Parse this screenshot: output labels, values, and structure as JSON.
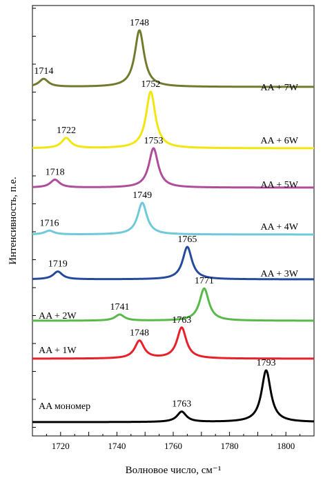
{
  "chart_data": {
    "type": "line",
    "title": "",
    "xlabel": "Волновое число, см⁻¹",
    "ylabel": "Интенсивность, п.е.",
    "xlim": [
      1710,
      1810
    ],
    "xticks": [
      1720,
      1740,
      1760,
      1780,
      1800
    ],
    "grid": false,
    "series": [
      {
        "name": "AA мономер",
        "color": "#000000",
        "peaks": [
          {
            "x": 1763,
            "label": "1763",
            "amp": 0.2
          },
          {
            "x": 1793,
            "label": "1793",
            "amp": 1.0
          }
        ]
      },
      {
        "name": "AA + 1W",
        "color": "#e8202a",
        "peaks": [
          {
            "x": 1748,
            "label": "1748",
            "amp": 0.4
          },
          {
            "x": 1763,
            "label": "1763",
            "amp": 0.7
          }
        ]
      },
      {
        "name": "AA + 2W",
        "color": "#58b848",
        "peaks": [
          {
            "x": 1741,
            "label": "1741",
            "amp": 0.17
          },
          {
            "x": 1771,
            "label": "1771",
            "amp": 0.9
          }
        ]
      },
      {
        "name": "AA + 3W",
        "color": "#254a9c",
        "peaks": [
          {
            "x": 1719,
            "label": "1719",
            "amp": 0.24
          },
          {
            "x": 1765,
            "label": "1765",
            "amp": 1.0
          }
        ]
      },
      {
        "name": "AA + 4W",
        "color": "#6ec9d8",
        "peaks": [
          {
            "x": 1716,
            "label": "1716",
            "amp": 0.12
          },
          {
            "x": 1749,
            "label": "1749",
            "amp": 1.0
          }
        ]
      },
      {
        "name": "AA + 5W",
        "color": "#b04c9c",
        "peaks": [
          {
            "x": 1718,
            "label": "1718",
            "amp": 0.2
          },
          {
            "x": 1753,
            "label": "1753",
            "amp": 1.0
          }
        ]
      },
      {
        "name": "AA + 6W",
        "color": "#f2e60e",
        "peaks": [
          {
            "x": 1722,
            "label": "1722",
            "amp": 0.18
          },
          {
            "x": 1752,
            "label": "1752",
            "amp": 1.0
          }
        ]
      },
      {
        "name": "AA + 7W",
        "color": "#747a2c",
        "peaks": [
          {
            "x": 1714,
            "label": "1714",
            "amp": 0.14
          },
          {
            "x": 1748,
            "label": "1748",
            "amp": 1.0
          }
        ]
      }
    ]
  }
}
